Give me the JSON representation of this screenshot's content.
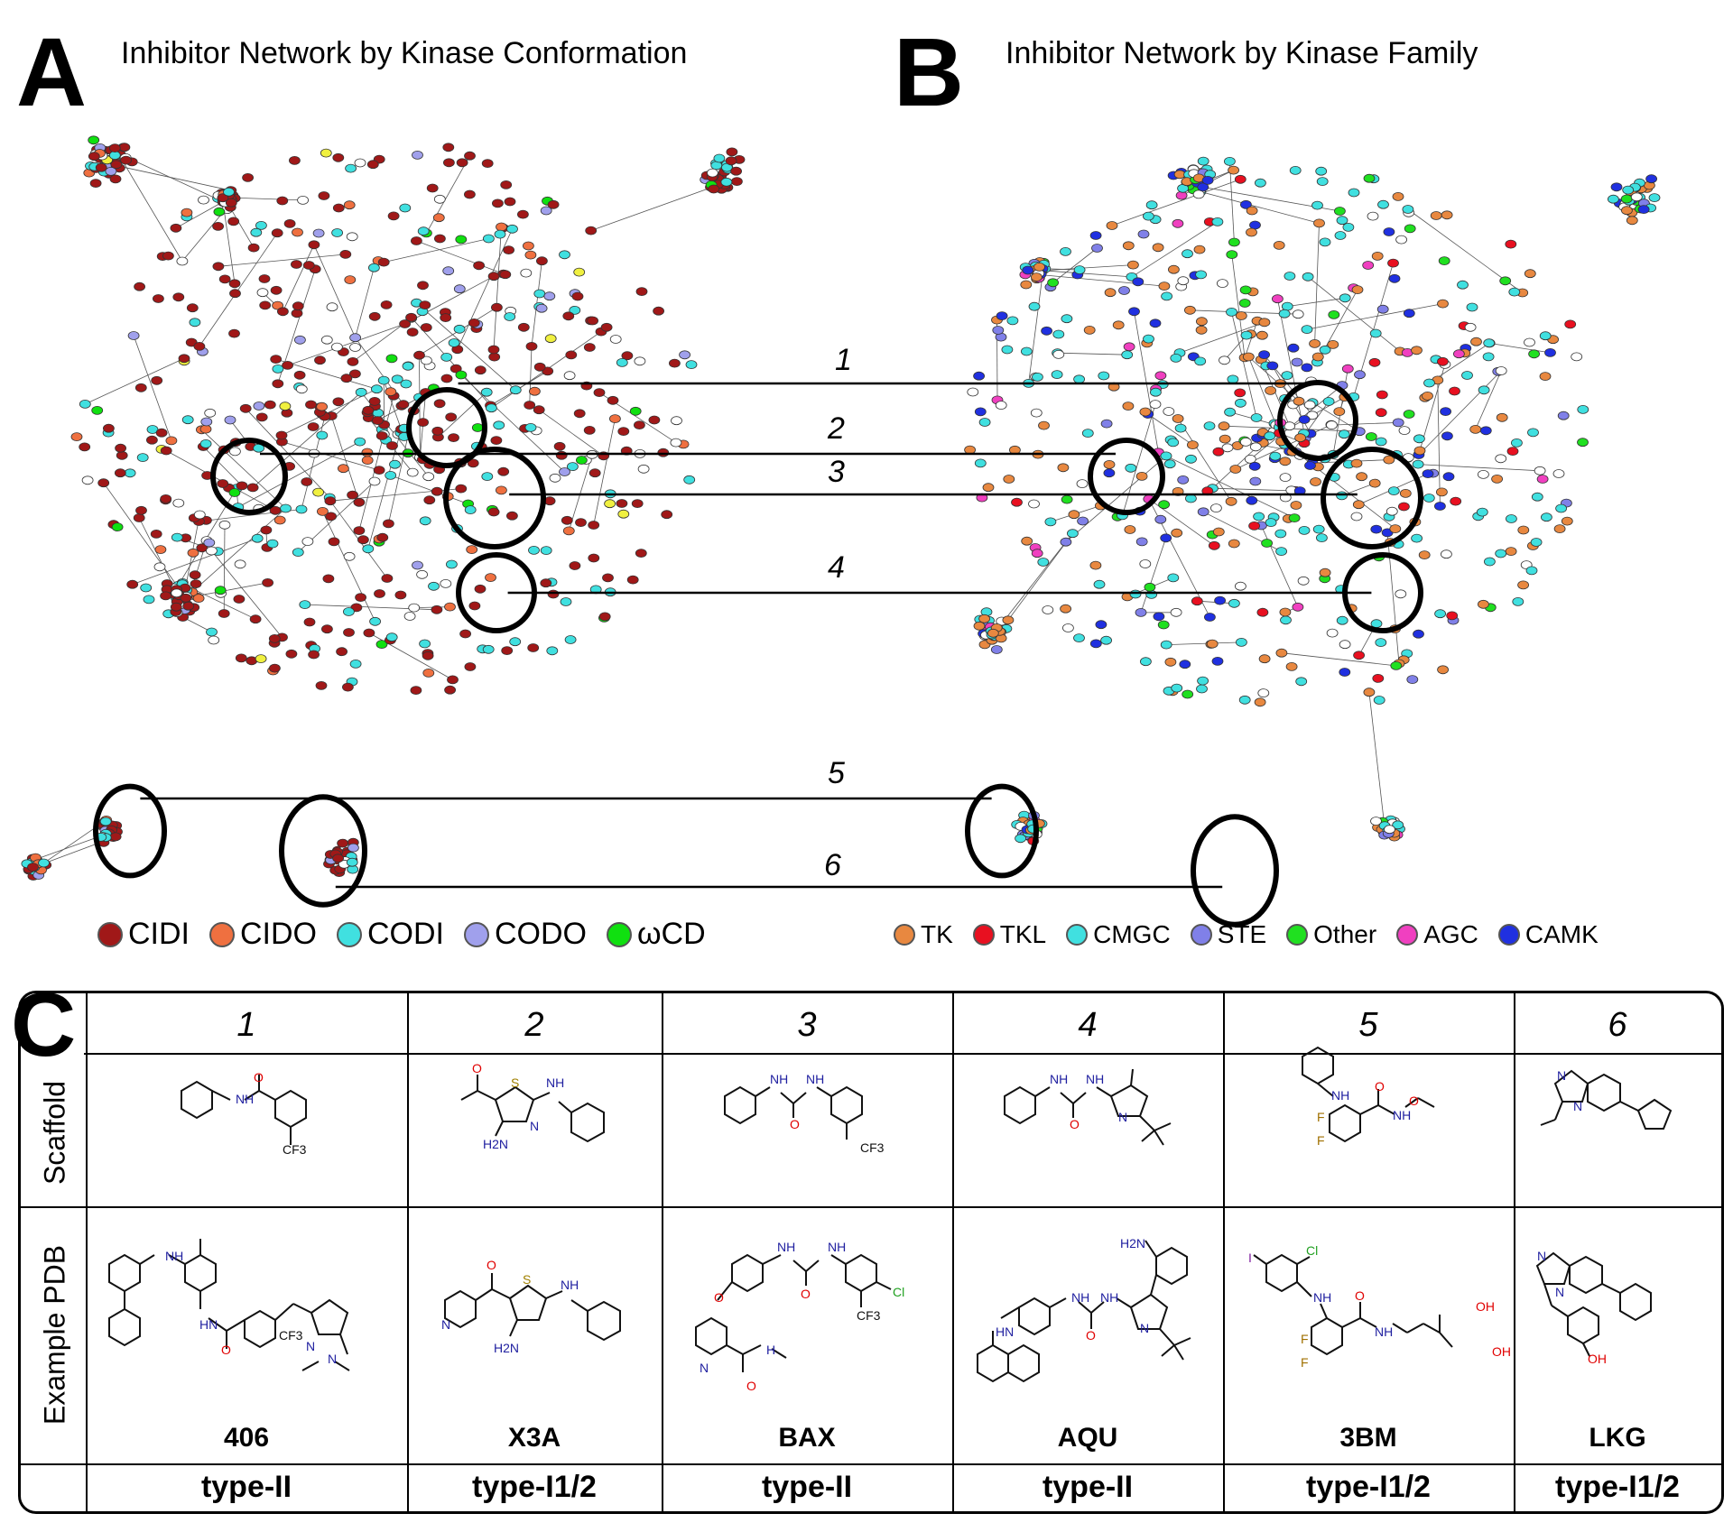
{
  "panelA": {
    "letter": "A",
    "title": "Inhibitor Network by Kinase Conformation",
    "legend": [
      {
        "label": "CIDI",
        "color": "#a01818"
      },
      {
        "label": "CIDO",
        "color": "#ef7040"
      },
      {
        "label": "CODI",
        "color": "#40e0e0"
      },
      {
        "label": "CODO",
        "color": "#a0a0ec"
      },
      {
        "label": "ωCD",
        "color": "#10e010"
      }
    ]
  },
  "panelB": {
    "letter": "B",
    "title": "Inhibitor Network by Kinase Family",
    "legend": [
      {
        "label": "TK",
        "color": "#e88840"
      },
      {
        "label": "TKL",
        "color": "#e81020"
      },
      {
        "label": "CMGC",
        "color": "#40e0e0"
      },
      {
        "label": "STE",
        "color": "#8080e8"
      },
      {
        "label": "Other",
        "color": "#20e020"
      },
      {
        "label": "AGC",
        "color": "#f040c0"
      },
      {
        "label": "CAMK",
        "color": "#2030e0"
      }
    ]
  },
  "clusters": [
    "1",
    "2",
    "3",
    "4",
    "5",
    "6"
  ],
  "panelC": {
    "letter": "C",
    "row_labels": {
      "scaffold": "Scaffold",
      "example": "Example PDB"
    },
    "columns": [
      {
        "num": "1",
        "pdb": "406",
        "type": "type-II"
      },
      {
        "num": "2",
        "pdb": "X3A",
        "type": "type-I1/2"
      },
      {
        "num": "3",
        "pdb": "BAX",
        "type": "type-II"
      },
      {
        "num": "4",
        "pdb": "AQU",
        "type": "type-II"
      },
      {
        "num": "5",
        "pdb": "3BM",
        "type": "type-I1/2"
      },
      {
        "num": "6",
        "pdb": "LKG",
        "type": "type-I1/2"
      }
    ],
    "atom_labels": {
      "H": "H",
      "N": "N",
      "O": "O",
      "S": "S",
      "F": "F",
      "Cl": "Cl",
      "I": "I",
      "CF3": "CF3",
      "NH": "NH",
      "HN": "HN",
      "H2N": "H2N",
      "OH": "OH"
    }
  }
}
